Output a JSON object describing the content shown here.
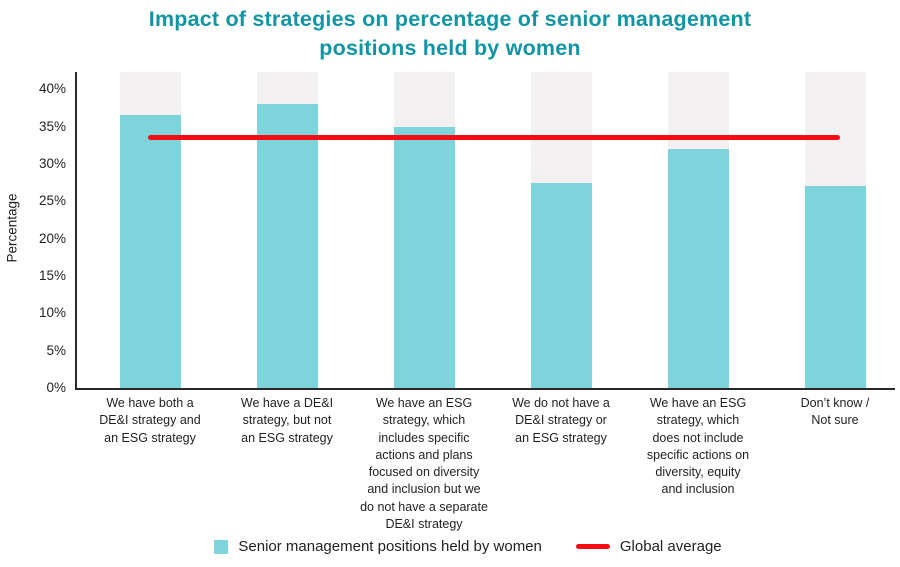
{
  "title": {
    "line1": "Impact of strategies on percentage of senior management",
    "line2": "positions held by women",
    "full": "Impact of strategies on percentage of senior management positions held by women"
  },
  "y_axis": {
    "title": "Percentage",
    "tick_labels": [
      "40%",
      "35%",
      "30%",
      "25%",
      "20%",
      "15%",
      "10%",
      "5%",
      "0%"
    ]
  },
  "x_axis": {
    "category_lines": [
      [
        "We have both a",
        "DE&I strategy and",
        "an ESG strategy"
      ],
      [
        "We have a DE&I",
        "strategy, but not",
        "an ESG strategy"
      ],
      [
        "We have an ESG",
        "strategy, which",
        "includes specific",
        "actions and plans",
        "focused on diversity",
        "and inclusion but we",
        "do not have a separate",
        "DE&I strategy"
      ],
      [
        "We do not have a",
        "DE&I strategy or",
        "an ESG strategy"
      ],
      [
        "We have an ESG",
        "strategy, which",
        "does not include",
        "specific actions on",
        "diversity, equity",
        "and inclusion"
      ],
      [
        "Don’t know /",
        "Not sure"
      ]
    ]
  },
  "legend": {
    "items": [
      {
        "label": "Senior management positions held by women",
        "swatch": "square",
        "color": "#7ED4DB"
      },
      {
        "label": "Global average",
        "swatch": "line",
        "color": "#F70B12"
      }
    ],
    "position": "bottom"
  },
  "colors": {
    "title_teal": "#1295A3",
    "bar_teal": "#7ED4DB",
    "track_gray": "#F2F0F1",
    "average_red": "#F70B12",
    "ink": "#231F20",
    "axis": "#2B2627",
    "background": "#FFFFFF"
  },
  "chart_data": {
    "type": "bar",
    "title": "Impact of strategies on percentage of senior management positions held by women",
    "xlabel": "",
    "ylabel": "Percentage",
    "ylim": [
      0,
      42.3
    ],
    "yticks": [
      0,
      5,
      10,
      15,
      20,
      25,
      30,
      35,
      40
    ],
    "ytick_suffix": "%",
    "grid": false,
    "legend_position": "bottom",
    "categories": [
      "We have both a DE&I strategy and an ESG strategy",
      "We have a DE&I strategy, but not an ESG strategy",
      "We have an ESG strategy, which includes specific actions and plans focused on diversity and inclusion but we do not have a separate DE&I strategy",
      "We do not have a DE&I strategy or an ESG strategy",
      "We have an ESG strategy, which does not include specific actions on diversity, equity and inclusion",
      "Don’t know / Not sure"
    ],
    "series": [
      {
        "name": "Senior management positions held by women",
        "type": "bar",
        "color": "#7ED4DB",
        "values": [
          36.5,
          38,
          35,
          27.5,
          32,
          27
        ]
      },
      {
        "name": "Global average",
        "type": "line",
        "color": "#F70B12",
        "value": 33.5
      }
    ],
    "bar_background": {
      "color": "#F2F0F1",
      "extends_to": 42.3
    }
  }
}
